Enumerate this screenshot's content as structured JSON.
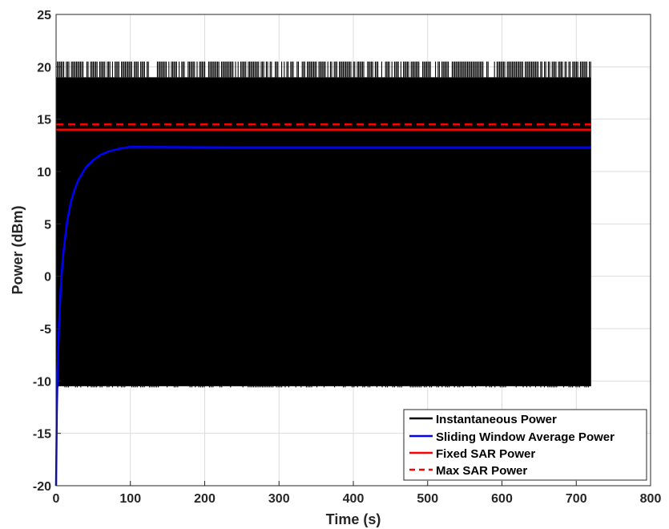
{
  "chart_data": {
    "type": "line",
    "title": "",
    "xlabel": "Time (s)",
    "ylabel": "Power (dBm)",
    "xlim": [
      0,
      800
    ],
    "ylim": [
      -20,
      25
    ],
    "xticks": [
      0,
      100,
      200,
      300,
      400,
      500,
      600,
      700,
      800
    ],
    "yticks": [
      -20,
      -15,
      -10,
      -5,
      0,
      5,
      10,
      15,
      20,
      25
    ],
    "grid": true,
    "legend_position": "bottom-right",
    "series": [
      {
        "name": "Instantaneous Power",
        "style": "solid",
        "color": "#000000",
        "x_range": [
          0,
          720
        ],
        "min": -10.5,
        "max": 20.5,
        "note_values": [
          -10.5,
          19.0,
          20.5
        ]
      },
      {
        "name": "Sliding Window Average Power",
        "style": "solid",
        "color": "#0000ff",
        "x": [
          0,
          1,
          2,
          4,
          6,
          8,
          10,
          15,
          20,
          25,
          30,
          40,
          50,
          60,
          70,
          80,
          90,
          100,
          250,
          720
        ],
        "y": [
          -20,
          -13,
          -9,
          -4.5,
          -1.5,
          0.7,
          2.4,
          5.3,
          7.1,
          8.3,
          9.2,
          10.4,
          11.1,
          11.6,
          11.9,
          12.1,
          12.25,
          12.35,
          12.3,
          12.3
        ]
      },
      {
        "name": "Fixed SAR Power",
        "style": "solid",
        "color": "#ff0000",
        "x": [
          0,
          720
        ],
        "y": [
          14.0,
          14.0
        ]
      },
      {
        "name": "Max SAR Power",
        "style": "dashed",
        "color": "#ff0000",
        "x": [
          0,
          720
        ],
        "y": [
          14.5,
          14.5
        ]
      }
    ]
  }
}
